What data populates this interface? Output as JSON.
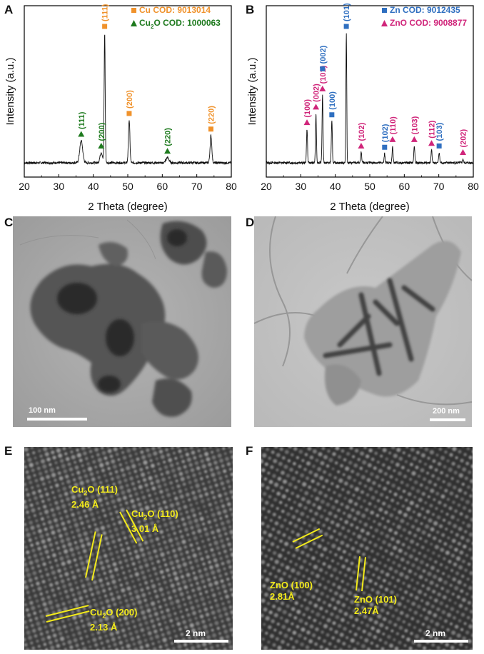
{
  "panel_letters": [
    "A",
    "B",
    "C",
    "D",
    "E",
    "F"
  ],
  "chart_data": [
    {
      "type": "line",
      "panel": "A",
      "xlabel": "2 Theta (degree)",
      "ylabel": "Intensity (a.u.)",
      "xlim": [
        20,
        80
      ],
      "xticks": [
        20,
        30,
        40,
        50,
        60,
        70,
        80
      ],
      "legend": [
        {
          "marker": "square",
          "color": "#f0922b",
          "label": "Cu COD: 9013014"
        },
        {
          "marker": "triangle",
          "color": "#1e7a1e",
          "label_parts": [
            "Cu",
            "2",
            "O COD: 1000063"
          ]
        }
      ],
      "peaks": [
        {
          "x": 36.5,
          "height": 0.17,
          "width": 0.6,
          "label": "(111)",
          "phase": "Cu2O"
        },
        {
          "x": 42.3,
          "height": 0.08,
          "width": 0.5,
          "label": "(200)",
          "phase": "Cu2O"
        },
        {
          "x": 43.3,
          "height": 1.0,
          "width": 0.22,
          "label": "(111)",
          "phase": "Cu"
        },
        {
          "x": 50.4,
          "height": 0.33,
          "width": 0.3,
          "label": "(200)",
          "phase": "Cu"
        },
        {
          "x": 61.5,
          "height": 0.04,
          "width": 0.6,
          "label": "(220)",
          "phase": "Cu2O"
        },
        {
          "x": 74.1,
          "height": 0.21,
          "width": 0.35,
          "label": "(220)",
          "phase": "Cu"
        }
      ]
    },
    {
      "type": "line",
      "panel": "B",
      "xlabel": "2 Theta (degree)",
      "ylabel": "Intensity (a.u.)",
      "xlim": [
        20,
        80
      ],
      "xticks": [
        20,
        30,
        40,
        50,
        60,
        70,
        80
      ],
      "legend": [
        {
          "marker": "square",
          "color": "#2f6fc0",
          "label": "Zn COD: 9012435"
        },
        {
          "marker": "triangle",
          "color": "#d0257a",
          "label": "ZnO COD: 9008877"
        }
      ],
      "peaks": [
        {
          "x": 31.8,
          "height": 0.26,
          "width": 0.2,
          "label": "(100)",
          "phase": "ZnO"
        },
        {
          "x": 34.4,
          "height": 0.38,
          "width": 0.2,
          "label": "(002)",
          "phase": "ZnO"
        },
        {
          "x": 36.3,
          "height": 0.52,
          "width": 0.2,
          "label": "(101)",
          "phase": "ZnO"
        },
        {
          "x": 36.3,
          "height": 0.0,
          "width": 0.2,
          "label": "(002)",
          "phase": "Zn"
        },
        {
          "x": 39.0,
          "height": 0.32,
          "width": 0.2,
          "label": "(100)",
          "phase": "Zn"
        },
        {
          "x": 43.2,
          "height": 1.0,
          "width": 0.17,
          "label": "(101)",
          "phase": "Zn"
        },
        {
          "x": 47.5,
          "height": 0.08,
          "width": 0.2,
          "label": "(102)",
          "phase": "ZnO"
        },
        {
          "x": 54.3,
          "height": 0.07,
          "width": 0.2,
          "label": "(102)",
          "phase": "Zn"
        },
        {
          "x": 56.6,
          "height": 0.13,
          "width": 0.2,
          "label": "(110)",
          "phase": "ZnO"
        },
        {
          "x": 62.9,
          "height": 0.13,
          "width": 0.2,
          "label": "(103)",
          "phase": "ZnO"
        },
        {
          "x": 67.9,
          "height": 0.1,
          "width": 0.2,
          "label": "(112)",
          "phase": "ZnO"
        },
        {
          "x": 70.1,
          "height": 0.08,
          "width": 0.2,
          "label": "(103)",
          "phase": "Zn"
        },
        {
          "x": 77.0,
          "height": 0.03,
          "width": 0.2,
          "label": "(202)",
          "phase": "ZnO"
        }
      ]
    }
  ],
  "tem": {
    "C": {
      "scale_label": "100 nm"
    },
    "D": {
      "scale_label": "200 nm"
    }
  },
  "hrtem": {
    "E": {
      "scale_label": "2 nm",
      "annotations": [
        {
          "formula": [
            "Cu",
            "2",
            "O (111)"
          ],
          "dspacing": "2.46 Å"
        },
        {
          "formula": [
            "Cu",
            "2",
            "O (110)"
          ],
          "dspacing": "3.01 Å"
        },
        {
          "formula": [
            "Cu",
            "2",
            "O (200)"
          ],
          "dspacing": "2.13 Å"
        }
      ]
    },
    "F": {
      "scale_label": "2 nm",
      "annotations": [
        {
          "formula": [
            "ZnO (100)"
          ],
          "dspacing": "2.81Å"
        },
        {
          "formula": [
            "ZnO (101)"
          ],
          "dspacing": "2.47Å"
        }
      ]
    }
  },
  "colors": {
    "cu": "#f0922b",
    "cu2o": "#1e7a1e",
    "zn": "#2f6fc0",
    "zno": "#d0257a",
    "annotation": "#f2ea1a"
  }
}
